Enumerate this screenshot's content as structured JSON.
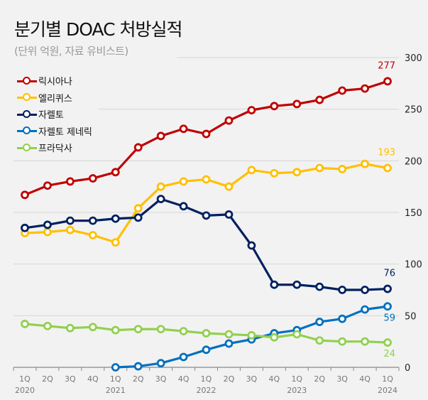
{
  "title": "분기별 DOAC 처방실적",
  "subtitle": "(단위 억원, 자료 유비스트)",
  "chart_data": {
    "type": "line",
    "title": "분기별 DOAC 처방실적",
    "subtitle": "(단위 억원, 자료 유비스트)",
    "ylim": [
      0,
      300
    ],
    "yticks": [
      "0",
      "50",
      "100",
      "150",
      "200",
      "250",
      "300"
    ],
    "yaxis_position": "right",
    "legend_position": "top-left",
    "x_quarters": [
      "1Q",
      "2Q",
      "3Q",
      "4Q",
      "1Q",
      "2Q",
      "3Q",
      "4Q",
      "1Q",
      "2Q",
      "3Q",
      "4Q",
      "1Q",
      "2Q",
      "3Q",
      "4Q",
      "1Q"
    ],
    "x_years": [
      "2020",
      "",
      "",
      "",
      "2021",
      "",
      "",
      "",
      "2022",
      "",
      "",
      "",
      "2023",
      "",
      "",
      "",
      "2024"
    ],
    "series": [
      {
        "name": "릭시아나",
        "color": "#c00000",
        "values": [
          167,
          176,
          180,
          183,
          189,
          213,
          224,
          231,
          226,
          239,
          249,
          253,
          255,
          259,
          268,
          270,
          277
        ],
        "end_label": "277"
      },
      {
        "name": "엘리퀴스",
        "color": "#ffc000",
        "values": [
          130,
          131,
          133,
          128,
          121,
          154,
          175,
          180,
          182,
          175,
          191,
          188,
          189,
          193,
          192,
          197,
          193
        ],
        "end_label": "193"
      },
      {
        "name": "자렐토",
        "color": "#002060",
        "values": [
          135,
          138,
          142,
          142,
          144,
          145,
          163,
          156,
          147,
          148,
          118,
          80,
          80,
          78,
          75,
          75,
          76
        ],
        "end_label": "76"
      },
      {
        "name": "자렐토 제네릭",
        "color": "#0070c0",
        "values": [
          null,
          null,
          null,
          null,
          0,
          1,
          4,
          10,
          17,
          23,
          27,
          33,
          36,
          44,
          47,
          56,
          59
        ],
        "end_label": "59"
      },
      {
        "name": "프라닥사",
        "color": "#92d050",
        "values": [
          42,
          40,
          38,
          39,
          36,
          37,
          37,
          35,
          33,
          32,
          31,
          29,
          32,
          26,
          25,
          25,
          24
        ],
        "end_label": "24"
      }
    ]
  }
}
